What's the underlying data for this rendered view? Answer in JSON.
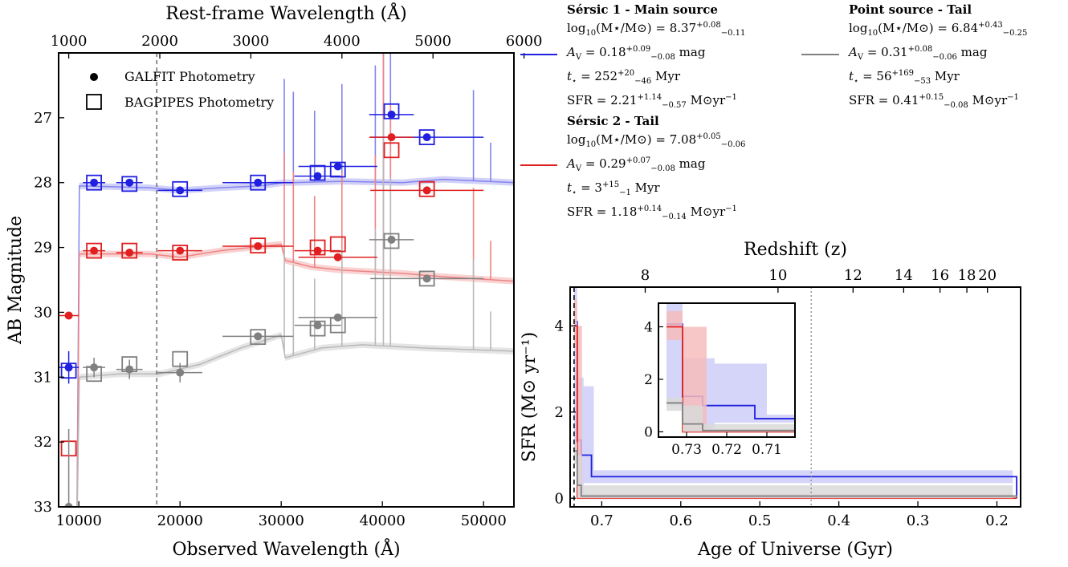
{
  "colors": {
    "main": "#2020e0",
    "tail": "#e02020",
    "point": "#808080"
  },
  "chart_data": [
    {
      "type": "scatter",
      "name": "sed",
      "title": "",
      "xlabel": "Observed Wavelength (Å)",
      "ylabel": "AB Magnitude",
      "top_xlabel": "Rest-frame Wavelength (Å)",
      "xlim": [
        8000,
        53000
      ],
      "ylim": [
        33,
        26
      ],
      "y_inverted": true,
      "top_axis_scale": "observed / 9.0",
      "xticks": [
        10000,
        20000,
        30000,
        40000,
        50000
      ],
      "xtick_labels": [
        "10000",
        "20000",
        "30000",
        "40000",
        "50000"
      ],
      "yticks": [
        27,
        28,
        29,
        30,
        31,
        32,
        33
      ],
      "ytick_labels": [
        "27",
        "28",
        "29",
        "30",
        "31",
        "32",
        "33"
      ],
      "top_ticks": [
        1000,
        2000,
        3000,
        4000,
        5000,
        6000
      ],
      "top_tick_labels": [
        "1000",
        "2000",
        "3000",
        "4000",
        "5000",
        "6000"
      ],
      "vline_x": 17700,
      "legend": [
        "GALFIT Photometry",
        "BAGPIPES Photometry"
      ],
      "legend_placement": "upper-left",
      "series": [
        {
          "name": "Sérsic 1 - Main source",
          "color_key": "main",
          "galfit": [
            {
              "x": 9000,
              "y": 30.85,
              "xerr": 1000,
              "yerr": 0.25
            },
            {
              "x": 11500,
              "y": 28.0,
              "xerr": 1100
            },
            {
              "x": 15000,
              "y": 28.0,
              "xerr": 1300
            },
            {
              "x": 20000,
              "y": 28.12,
              "xerr": 2200
            },
            {
              "x": 27700,
              "y": 28.0,
              "xerr": 3500
            },
            {
              "x": 33600,
              "y": 27.9,
              "xerr": 2300
            },
            {
              "x": 35600,
              "y": 27.75,
              "xerr": 3900
            },
            {
              "x": 40900,
              "y": 26.95,
              "xerr": 2200
            },
            {
              "x": 44400,
              "y": 27.3,
              "xerr": 5600
            }
          ],
          "bagpipes": [
            {
              "x": 9000,
              "y": 30.9
            },
            {
              "x": 11500,
              "y": 28.0
            },
            {
              "x": 15000,
              "y": 28.02
            },
            {
              "x": 20000,
              "y": 28.1
            },
            {
              "x": 27700,
              "y": 28.0
            },
            {
              "x": 33600,
              "y": 27.85
            },
            {
              "x": 35600,
              "y": 27.8
            },
            {
              "x": 40900,
              "y": 26.9
            },
            {
              "x": 44400,
              "y": 27.3
            }
          ]
        },
        {
          "name": "Sérsic 2 - Tail",
          "color_key": "tail",
          "galfit": [
            {
              "x": 9000,
              "y": 30.05,
              "xerr": 1000
            },
            {
              "x": 11500,
              "y": 29.05,
              "xerr": 1100
            },
            {
              "x": 15000,
              "y": 29.08,
              "xerr": 1300
            },
            {
              "x": 20000,
              "y": 29.05,
              "xerr": 2200
            },
            {
              "x": 27700,
              "y": 28.98,
              "xerr": 3500
            },
            {
              "x": 33600,
              "y": 29.05,
              "xerr": 2300
            },
            {
              "x": 35600,
              "y": 29.15,
              "xerr": 3900
            },
            {
              "x": 40900,
              "y": 27.3,
              "xerr": 2200
            },
            {
              "x": 44400,
              "y": 28.12,
              "xerr": 5600
            }
          ],
          "bagpipes": [
            {
              "x": 9000,
              "y": 32.1
            },
            {
              "x": 11500,
              "y": 29.05
            },
            {
              "x": 15000,
              "y": 29.05
            },
            {
              "x": 20000,
              "y": 29.08
            },
            {
              "x": 27700,
              "y": 28.97
            },
            {
              "x": 33600,
              "y": 29.0
            },
            {
              "x": 35600,
              "y": 28.95
            },
            {
              "x": 40900,
              "y": 27.5
            },
            {
              "x": 44400,
              "y": 28.1
            }
          ]
        },
        {
          "name": "Point source - Tail",
          "color_key": "point",
          "galfit": [
            {
              "x": 9000,
              "y": 33.0,
              "xerr": 1000,
              "yerr": 1.2
            },
            {
              "x": 11500,
              "y": 30.85,
              "xerr": 1100,
              "yerr": 0.15
            },
            {
              "x": 15000,
              "y": 30.88,
              "xerr": 1300,
              "yerr": 0.15
            },
            {
              "x": 20000,
              "y": 30.93,
              "xerr": 2200,
              "yerr": 0.15
            },
            {
              "x": 27700,
              "y": 30.37,
              "xerr": 3500
            },
            {
              "x": 33600,
              "y": 30.2,
              "xerr": 2300
            },
            {
              "x": 35600,
              "y": 30.08,
              "xerr": 3900
            },
            {
              "x": 40900,
              "y": 28.88,
              "xerr": 2200
            },
            {
              "x": 44400,
              "y": 29.48,
              "xerr": 5600
            }
          ],
          "bagpipes": [
            {
              "x": 11500,
              "y": 30.95
            },
            {
              "x": 15000,
              "y": 30.8
            },
            {
              "x": 20000,
              "y": 30.72
            },
            {
              "x": 27700,
              "y": 30.38
            },
            {
              "x": 33600,
              "y": 30.25
            },
            {
              "x": 35600,
              "y": 30.2
            },
            {
              "x": 40900,
              "y": 28.9
            },
            {
              "x": 44400,
              "y": 29.48
            }
          ]
        }
      ],
      "model_spectra": [
        {
          "color_key": "main",
          "continuum": [
            [
              8000,
              33.5
            ],
            [
              9800,
              33.5
            ],
            [
              10050,
              28.05
            ],
            [
              17000,
              28.08
            ],
            [
              20000,
              28.12
            ],
            [
              24000,
              28.08
            ],
            [
              28000,
              28.05
            ],
            [
              30200,
              28.0
            ],
            [
              31000,
              28.0
            ],
            [
              36000,
              27.98
            ],
            [
              42000,
              28.0
            ],
            [
              46000,
              27.95
            ],
            [
              53000,
              28.0
            ]
          ]
        },
        {
          "color_key": "tail",
          "continuum": [
            [
              8000,
              33.5
            ],
            [
              9800,
              33.5
            ],
            [
              10050,
              29.1
            ],
            [
              17000,
              29.1
            ],
            [
              20000,
              29.15
            ],
            [
              24000,
              29.05
            ],
            [
              30000,
              28.95
            ],
            [
              30400,
              29.2
            ],
            [
              33000,
              29.3
            ],
            [
              36000,
              29.35
            ],
            [
              42000,
              29.4
            ],
            [
              46000,
              29.45
            ],
            [
              53000,
              29.52
            ]
          ]
        },
        {
          "color_key": "point",
          "continuum": [
            [
              8000,
              33.5
            ],
            [
              9800,
              33.5
            ],
            [
              10050,
              31.0
            ],
            [
              14000,
              30.95
            ],
            [
              18000,
              30.95
            ],
            [
              22000,
              30.8
            ],
            [
              26000,
              30.55
            ],
            [
              30000,
              30.35
            ],
            [
              30400,
              30.7
            ],
            [
              34000,
              30.55
            ],
            [
              38000,
              30.5
            ],
            [
              44000,
              30.55
            ],
            [
              53000,
              30.6
            ]
          ]
        }
      ]
    },
    {
      "type": "line",
      "name": "sfh",
      "title": "",
      "xlabel": "Age of Universe (Gyr)",
      "ylabel": "SFR (M⊙ yr⁻¹)",
      "top_xlabel": "Redshift (z)",
      "xlim": [
        0.74,
        0.17
      ],
      "ylim": [
        -0.2,
        4.9
      ],
      "xticks": [
        0.7,
        0.6,
        0.5,
        0.4,
        0.3,
        0.2
      ],
      "xtick_labels": [
        "0.7",
        "0.6",
        "0.5",
        "0.4",
        "0.3",
        "0.2"
      ],
      "yticks": [
        0,
        2,
        4
      ],
      "ytick_labels": [
        "0",
        "2",
        "4"
      ],
      "top_ticks_age": [
        0.645,
        0.477,
        0.382,
        0.318,
        0.272,
        0.238,
        0.212
      ],
      "top_tick_labels": [
        "8",
        "10",
        "12",
        "14",
        "16",
        "18",
        "20"
      ],
      "vline_dashed_age": 0.735,
      "vline_dotted_age": 0.435,
      "series": [
        {
          "name": "Sérsic 1 - Main source",
          "color_key": "main",
          "steps": [
            [
              0.735,
              4.1
            ],
            [
              0.731,
              1.35
            ],
            [
              0.726,
              1.0
            ],
            [
              0.713,
              0.5
            ],
            [
              0.18,
              0.5
            ],
            [
              0.175,
              0.0
            ]
          ],
          "band_upper": [
            [
              0.735,
              4.9
            ],
            [
              0.731,
              2.8
            ],
            [
              0.723,
              2.6
            ],
            [
              0.71,
              0.65
            ],
            [
              0.18,
              0.65
            ]
          ],
          "band_lower": [
            [
              0.735,
              1.0
            ],
            [
              0.731,
              0.1
            ],
            [
              0.723,
              0.35
            ],
            [
              0.71,
              0.35
            ],
            [
              0.18,
              0.35
            ]
          ]
        },
        {
          "name": "Sérsic 2 - Tail",
          "color_key": "tail",
          "steps": [
            [
              0.735,
              4.0
            ],
            [
              0.731,
              0.0
            ],
            [
              0.175,
              0.0
            ]
          ],
          "band_upper": [
            [
              0.735,
              4.6
            ],
            [
              0.731,
              4.0
            ],
            [
              0.725,
              0.1
            ],
            [
              0.18,
              0.05
            ]
          ],
          "band_lower": [
            [
              0.735,
              3.5
            ],
            [
              0.731,
              0.0
            ],
            [
              0.18,
              0.0
            ]
          ]
        },
        {
          "name": "Point source - Tail",
          "color_key": "point",
          "steps": [
            [
              0.735,
              1.1
            ],
            [
              0.731,
              0.3
            ],
            [
              0.726,
              0.05
            ],
            [
              0.175,
              0.02
            ]
          ],
          "band_upper": [
            [
              0.735,
              1.3
            ],
            [
              0.731,
              1.0
            ],
            [
              0.726,
              0.3
            ],
            [
              0.18,
              0.05
            ]
          ],
          "band_lower": [
            [
              0.735,
              0.8
            ],
            [
              0.731,
              0.0
            ],
            [
              0.18,
              0.0
            ]
          ]
        }
      ]
    },
    {
      "type": "line",
      "name": "sfh-inset",
      "title": "",
      "xlim": [
        0.737,
        0.703
      ],
      "ylim": [
        -0.2,
        4.9
      ],
      "xticks": [
        0.73,
        0.72,
        0.71
      ],
      "xtick_labels": [
        "0.73",
        "0.72",
        "0.71"
      ],
      "yticks": [
        0,
        2,
        4
      ],
      "ytick_labels": [
        "0",
        "2",
        "4"
      ]
    }
  ],
  "legend_text": {
    "main": {
      "header": "Sérsic 1 - Main source",
      "mass_base": "log",
      "mass_sub": "10",
      "mass_rest": "(M⋆/M⊙) = 8.37",
      "mass_up": "+0.08",
      "mass_dn": "−0.11",
      "av_rest": " = 0.18",
      "av_up": "+0.09",
      "av_dn": "−0.08",
      "av_unit": " mag",
      "t_rest": " = 252",
      "t_up": "+20",
      "t_dn": "−46",
      "t_unit": " Myr",
      "sfr_rest": "SFR = 2.21",
      "sfr_up": "+1.14",
      "sfr_dn": "−0.57",
      "sfr_unit": " M⊙yr",
      "sfr_exp": "−1"
    },
    "tail": {
      "header": "Sérsic 2 - Tail",
      "mass_base": "log",
      "mass_sub": "10",
      "mass_rest": "(M⋆/M⊙) = 7.08",
      "mass_up": "+0.05",
      "mass_dn": "−0.06",
      "av_rest": " = 0.29",
      "av_up": "+0.07",
      "av_dn": "−0.08",
      "av_unit": " mag",
      "t_rest": " = 3",
      "t_up": "+15",
      "t_dn": "−1",
      "t_unit": " Myr",
      "sfr_rest": "SFR = 1.18",
      "sfr_up": "+0.14",
      "sfr_dn": "−0.14",
      "sfr_unit": " M⊙yr",
      "sfr_exp": "−1"
    },
    "point": {
      "header": "Point source - Tail",
      "mass_base": "log",
      "mass_sub": "10",
      "mass_rest": "(M⋆/M⊙) = 6.84",
      "mass_up": "+0.43",
      "mass_dn": "−0.25",
      "av_rest": " = 0.31",
      "av_up": "+0.08",
      "av_dn": "−0.06",
      "av_unit": " mag",
      "t_rest": " = 56",
      "t_up": "+169",
      "t_dn": "−53",
      "t_unit": " Myr",
      "sfr_rest": "SFR = 0.41",
      "sfr_up": "+0.15",
      "sfr_dn": "−0.08",
      "sfr_unit": " M⊙yr",
      "sfr_exp": "−1"
    }
  }
}
